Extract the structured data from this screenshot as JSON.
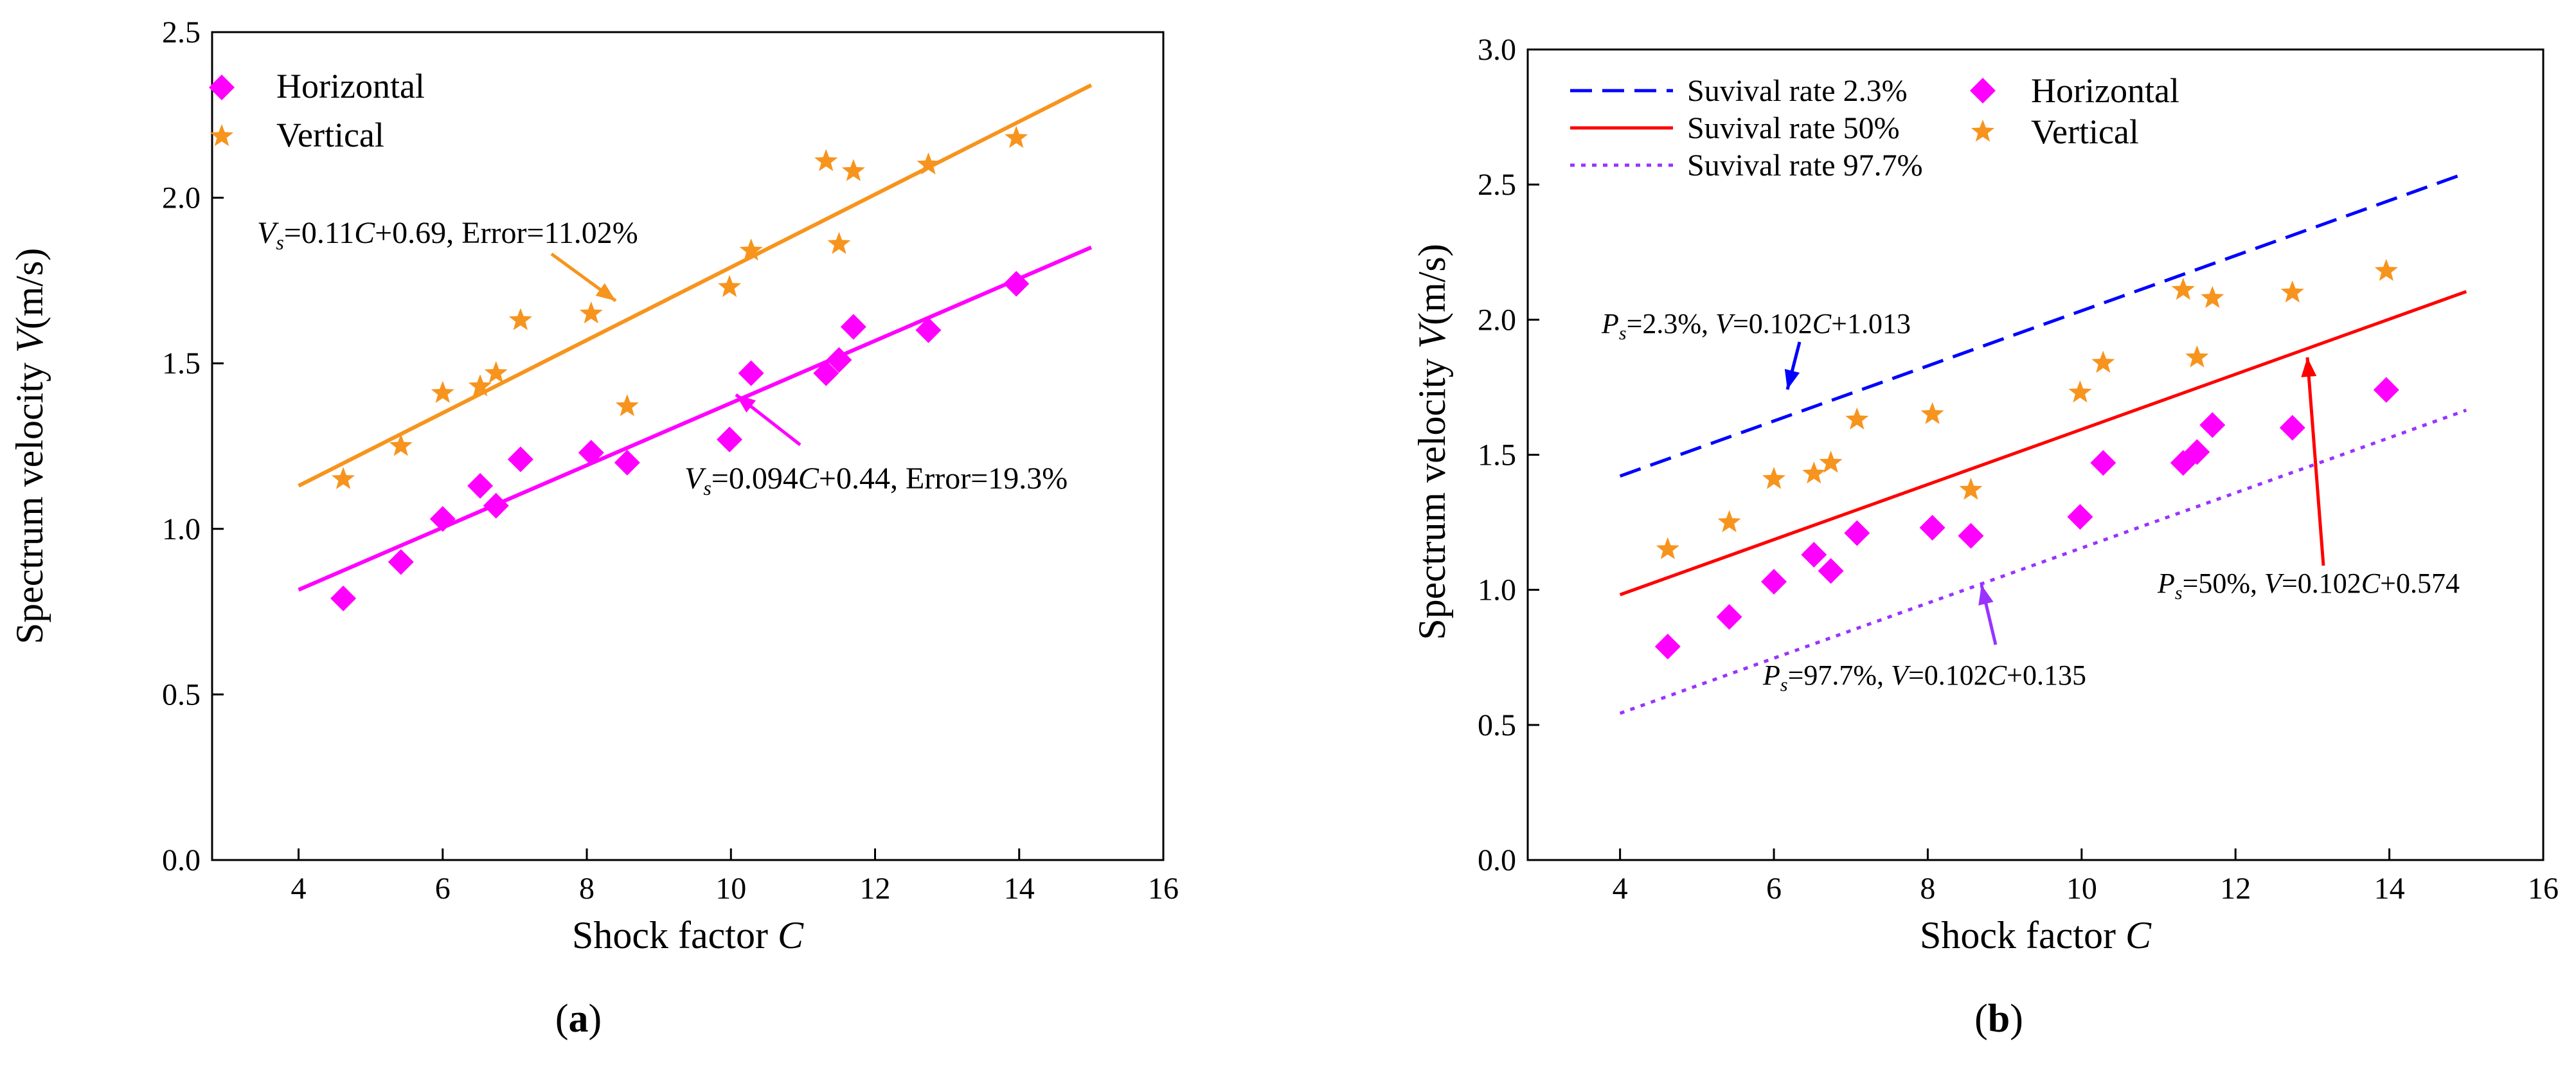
{
  "panels": [
    {
      "caption_letter": "a"
    },
    {
      "caption_letter": "b"
    }
  ],
  "colors": {
    "horizontal": "#ff00ff",
    "vertical": "#f7941d",
    "fit_vertical": "#f7941d",
    "fit_horizontal": "#ff00ff",
    "survival_2_3": "#0000ff",
    "survival_50": "#ff0000",
    "survival_97_7": "#9933ff",
    "axis": "#000000"
  },
  "chart_data": [
    {
      "type": "scatter",
      "xlabel": "Shock factor C",
      "ylabel": "Spectrum velocity V(m/s)",
      "xlim": [
        2.8,
        16
      ],
      "ylim": [
        0,
        2.5
      ],
      "xticks": [
        "4",
        "6",
        "8",
        "10",
        "12",
        "14",
        "16"
      ],
      "yticks": [
        "0.0",
        "0.5",
        "1.0",
        "1.5",
        "2.0",
        "2.5"
      ],
      "grid": false,
      "legend_position": "top-left",
      "series": [
        {
          "name": "Horizontal",
          "marker": "diamond",
          "points": [
            [
              4.62,
              0.79
            ],
            [
              5.42,
              0.9
            ],
            [
              6.0,
              1.03
            ],
            [
              6.52,
              1.13
            ],
            [
              6.74,
              1.07
            ],
            [
              7.08,
              1.21
            ],
            [
              8.06,
              1.23
            ],
            [
              8.56,
              1.2
            ],
            [
              9.98,
              1.27
            ],
            [
              10.28,
              1.47
            ],
            [
              11.32,
              1.47
            ],
            [
              11.5,
              1.51
            ],
            [
              11.7,
              1.61
            ],
            [
              12.74,
              1.6
            ],
            [
              13.96,
              1.74
            ]
          ]
        },
        {
          "name": "Vertical",
          "marker": "star",
          "points": [
            [
              4.62,
              1.15
            ],
            [
              5.42,
              1.25
            ],
            [
              6.0,
              1.41
            ],
            [
              6.52,
              1.43
            ],
            [
              6.74,
              1.47
            ],
            [
              7.08,
              1.63
            ],
            [
              8.06,
              1.65
            ],
            [
              8.56,
              1.37
            ],
            [
              9.98,
              1.73
            ],
            [
              10.28,
              1.84
            ],
            [
              11.32,
              2.11
            ],
            [
              11.5,
              1.86
            ],
            [
              11.7,
              2.08
            ],
            [
              12.74,
              2.1
            ],
            [
              13.96,
              2.18
            ]
          ]
        }
      ],
      "fit_lines": [
        {
          "series": "Vertical",
          "slope": 0.11,
          "intercept": 0.69,
          "x_range": [
            4,
            15
          ],
          "label_prefix": "V",
          "label_sub": "s",
          "label_mid1": "=0.11",
          "label_var": "C",
          "label_rest": "+0.69, Error=11.02%"
        },
        {
          "series": "Horizontal",
          "slope": 0.094,
          "intercept": 0.44,
          "x_range": [
            4,
            15
          ],
          "label_prefix": "V",
          "label_sub": "s",
          "label_mid1": "=0.094",
          "label_var": "C",
          "label_rest": "+0.44, Error=19.3%"
        }
      ]
    },
    {
      "type": "scatter",
      "xlabel": "Shock factor C",
      "ylabel": "Spectrum velocity V(m/s)",
      "xlim": [
        2.8,
        16
      ],
      "ylim": [
        0,
        3.0
      ],
      "xticks": [
        "4",
        "6",
        "8",
        "10",
        "12",
        "14",
        "16"
      ],
      "yticks": [
        "0.0",
        "0.5",
        "1.0",
        "1.5",
        "2.0",
        "2.5",
        "3.0"
      ],
      "grid": false,
      "legend_position": "top-left",
      "lines": [
        {
          "name": "Suvival rate 2.3%",
          "style": "dashed",
          "slope": 0.102,
          "intercept": 1.013,
          "x_range": [
            4,
            15
          ]
        },
        {
          "name": "Suvival rate 50%",
          "style": "solid",
          "slope": 0.102,
          "intercept": 0.574,
          "x_range": [
            4,
            15
          ]
        },
        {
          "name": "Suvival rate 97.7%",
          "style": "dotted",
          "slope": 0.102,
          "intercept": 0.135,
          "x_range": [
            4,
            15
          ]
        }
      ],
      "series": [
        {
          "name": "Horizontal",
          "marker": "diamond",
          "points": [
            [
              4.62,
              0.79
            ],
            [
              5.42,
              0.9
            ],
            [
              6.0,
              1.03
            ],
            [
              6.52,
              1.13
            ],
            [
              6.74,
              1.07
            ],
            [
              7.08,
              1.21
            ],
            [
              8.06,
              1.23
            ],
            [
              8.56,
              1.2
            ],
            [
              9.98,
              1.27
            ],
            [
              10.28,
              1.47
            ],
            [
              11.32,
              1.47
            ],
            [
              11.5,
              1.51
            ],
            [
              11.7,
              1.61
            ],
            [
              12.74,
              1.6
            ],
            [
              13.96,
              1.74
            ]
          ]
        },
        {
          "name": "Vertical",
          "marker": "star",
          "points": [
            [
              4.62,
              1.15
            ],
            [
              5.42,
              1.25
            ],
            [
              6.0,
              1.41
            ],
            [
              6.52,
              1.43
            ],
            [
              6.74,
              1.47
            ],
            [
              7.08,
              1.63
            ],
            [
              8.06,
              1.65
            ],
            [
              8.56,
              1.37
            ],
            [
              9.98,
              1.73
            ],
            [
              10.28,
              1.84
            ],
            [
              11.32,
              2.11
            ],
            [
              11.5,
              1.86
            ],
            [
              11.7,
              2.08
            ],
            [
              12.74,
              2.1
            ],
            [
              13.96,
              2.18
            ]
          ]
        }
      ],
      "annotations": [
        {
          "line": "Suvival rate 2.3%",
          "p": "P",
          "sub": "s",
          "mid": "=2.3%, ",
          "v": "V",
          "rest1": "=0.102",
          "c": "C",
          "rest2": "+1.013"
        },
        {
          "line": "Suvival rate 50%",
          "p": "P",
          "sub": "s",
          "mid": "=50%, ",
          "v": "V",
          "rest1": "=0.102",
          "c": "C",
          "rest2": "+0.574"
        },
        {
          "line": "Suvival rate 97.7%",
          "p": "P",
          "sub": "s",
          "mid": "=97.7%, ",
          "v": "V",
          "rest1": "=0.102",
          "c": "C",
          "rest2": "+0.135"
        }
      ]
    }
  ]
}
